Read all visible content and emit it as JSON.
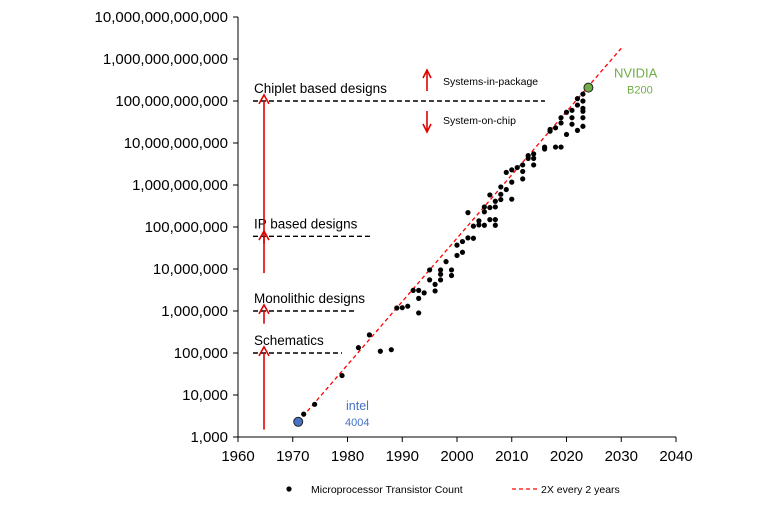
{
  "chart_data": {
    "type": "scatter",
    "title": "",
    "xlabel": "",
    "ylabel": "",
    "xlim": [
      1960,
      2040
    ],
    "ylim": [
      1000,
      10000000000000
    ],
    "y_scale": "log",
    "x_ticks": [
      "1960",
      "1970",
      "1980",
      "1990",
      "2000",
      "2010",
      "2020",
      "2030",
      "2040"
    ],
    "y_ticks": [
      "10,000,000,000,000",
      "1,000,000,000,000",
      "100,000,000,000",
      "10,000,000,000",
      "1,000,000,000",
      "100,000,000",
      "10,000,000",
      "1,000,000",
      "100,000",
      "10,000",
      "1,000"
    ],
    "series": [
      {
        "name": "Microprocessor Transistor Count",
        "marker": "dot",
        "color": "#000000",
        "points": [
          [
            1971,
            2300
          ],
          [
            1972,
            3500
          ],
          [
            1974,
            6000
          ],
          [
            1979,
            29000
          ],
          [
            1982,
            134000
          ],
          [
            1984,
            270000
          ],
          [
            1986,
            110000
          ],
          [
            1988,
            120000
          ],
          [
            1989,
            1180000
          ],
          [
            1990,
            1200000
          ],
          [
            1991,
            1300000
          ],
          [
            1992,
            3100000
          ],
          [
            1993,
            2000000
          ],
          [
            1993,
            900000
          ],
          [
            1993,
            3100000
          ],
          [
            1994,
            2700000
          ],
          [
            1995,
            9500000
          ],
          [
            1995,
            5500000
          ],
          [
            1996,
            3000000
          ],
          [
            1996,
            4300000
          ],
          [
            1997,
            7500000
          ],
          [
            1997,
            5500000
          ],
          [
            1997,
            9500000
          ],
          [
            1998,
            15000000
          ],
          [
            1999,
            9500000
          ],
          [
            1999,
            7000000
          ],
          [
            2000,
            21000000
          ],
          [
            2000,
            37000000
          ],
          [
            2001,
            25000000
          ],
          [
            2001,
            45000000
          ],
          [
            2002,
            55000000
          ],
          [
            2003,
            54000000
          ],
          [
            2002,
            220000000
          ],
          [
            2003,
            105000000
          ],
          [
            2004,
            112000000
          ],
          [
            2004,
            140000000
          ],
          [
            2005,
            230000000
          ],
          [
            2005,
            300000000
          ],
          [
            2005,
            110000000
          ],
          [
            2006,
            290000000
          ],
          [
            2006,
            150000000
          ],
          [
            2006,
            580000000
          ],
          [
            2007,
            410000000
          ],
          [
            2007,
            110000000
          ],
          [
            2007,
            150000000
          ],
          [
            2007,
            300000000
          ],
          [
            2008,
            900000000
          ],
          [
            2008,
            600000000
          ],
          [
            2008,
            450000000
          ],
          [
            2009,
            2000000000
          ],
          [
            2009,
            780000000
          ],
          [
            2010,
            2300000000
          ],
          [
            2010,
            1170000000
          ],
          [
            2010,
            460000000
          ],
          [
            2011,
            2600000000
          ],
          [
            2012,
            2100000000
          ],
          [
            2012,
            1400000000
          ],
          [
            2012,
            3000000000
          ],
          [
            2013,
            5000000000
          ],
          [
            2013,
            4300000000
          ],
          [
            2014,
            4300000000
          ],
          [
            2014,
            5500000000
          ],
          [
            2014,
            3000000000
          ],
          [
            2016,
            7200000000
          ],
          [
            2016,
            8000000000
          ],
          [
            2017,
            19200000000
          ],
          [
            2017,
            21000000000
          ],
          [
            2018,
            23000000000
          ],
          [
            2018,
            8000000000
          ],
          [
            2019,
            40000000000
          ],
          [
            2019,
            8000000000
          ],
          [
            2019,
            30000000000
          ],
          [
            2020,
            16000000000
          ],
          [
            2020,
            54000000000
          ],
          [
            2021,
            28000000000
          ],
          [
            2021,
            60000000000
          ],
          [
            2021,
            40000000000
          ],
          [
            2022,
            80000000000
          ],
          [
            2022,
            114000000000
          ],
          [
            2022,
            20000000000
          ],
          [
            2023,
            100000000000
          ],
          [
            2023,
            146000000000
          ],
          [
            2023,
            25000000000
          ],
          [
            2023,
            40000000000
          ],
          [
            2023,
            57000000000
          ],
          [
            2023,
            67000000000
          ]
        ]
      },
      {
        "name": "2X every 2 years",
        "style": "dashed",
        "color": "#ff0000",
        "x": [
          1971,
          2030
        ],
        "y": [
          2300,
          1800000000000
        ]
      }
    ],
    "highlights": [
      {
        "label": "intel",
        "sublabel": "4004",
        "x": 1971,
        "y": 2300,
        "color": "#4472c4"
      },
      {
        "label": "NVIDIA",
        "sublabel": "B200",
        "x": 2024,
        "y": 208000000000,
        "color": "#70ad47"
      }
    ],
    "thresholds": [
      {
        "label": "Chiplet based designs",
        "y": 100000000000
      },
      {
        "label": "IP based designs",
        "y": 60000000
      },
      {
        "label": "Monolithic designs",
        "y": 1000000
      },
      {
        "label": "Schematics",
        "y": 100000
      }
    ],
    "annotations": {
      "up_label": "Systems-in-package",
      "down_label": "System-on-chip"
    },
    "legend": {
      "placement": "bottom",
      "entries": [
        "Microprocessor Transistor Count",
        "2X every 2 years"
      ]
    },
    "grid": false
  }
}
